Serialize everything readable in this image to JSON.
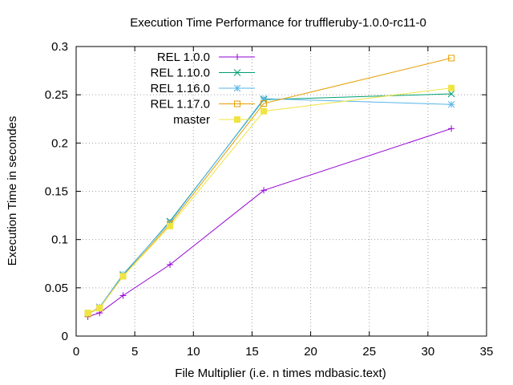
{
  "chart_data": {
    "type": "line",
    "title": "Execution Time Performance for truffleruby-1.0.0-rc11-0",
    "xlabel": "File Multiplier (i.e. n times mdbasic.text)",
    "ylabel": "Execution Time in secondes",
    "xlim": [
      0,
      35
    ],
    "ylim": [
      0,
      0.3
    ],
    "xticks": [
      0,
      5,
      10,
      15,
      20,
      25,
      30,
      35
    ],
    "yticks": [
      0,
      0.05,
      0.1,
      0.15,
      0.2,
      0.25,
      0.3
    ],
    "grid": true,
    "legend_position": "top-left",
    "x": [
      1,
      2,
      4,
      8,
      16,
      32
    ],
    "series": [
      {
        "name": "REL 1.0.0",
        "color": "#9400d3",
        "marker": "plus",
        "values": [
          0.02,
          0.024,
          0.042,
          0.074,
          0.151,
          0.215
        ]
      },
      {
        "name": "REL 1.10.0",
        "color": "#009e73",
        "marker": "cross",
        "values": [
          0.023,
          0.03,
          0.063,
          0.119,
          0.245,
          0.251
        ]
      },
      {
        "name": "REL 1.16.0",
        "color": "#56b4e9",
        "marker": "star",
        "values": [
          0.023,
          0.03,
          0.064,
          0.118,
          0.246,
          0.24
        ]
      },
      {
        "name": "REL 1.17.0",
        "color": "#e69f00",
        "marker": "square-open",
        "values": [
          0.023,
          0.029,
          0.062,
          0.116,
          0.241,
          0.288
        ]
      },
      {
        "name": "master",
        "color": "#f0e442",
        "marker": "square-filled",
        "values": [
          0.024,
          0.029,
          0.062,
          0.114,
          0.233,
          0.257
        ]
      }
    ]
  }
}
